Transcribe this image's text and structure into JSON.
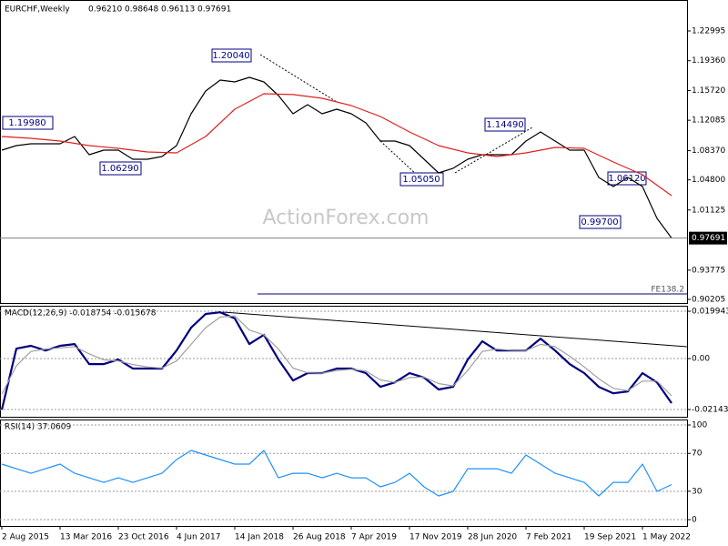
{
  "chart_data": [
    {
      "type": "line",
      "title": "EURCHF,Weekly",
      "ohlc_labels": [
        "0.96210",
        "0.98648",
        "0.96113",
        "0.97691"
      ],
      "last_label": "0.97691",
      "watermark": "ActionForex.com",
      "fe_label": "FE138.2",
      "annotations": [
        "1.19980",
        "1.06290",
        "1.20040",
        "1.05050",
        "1.14490",
        "1.06120",
        "0.99700"
      ],
      "x": [
        0,
        8,
        16,
        24,
        32,
        40,
        48,
        56,
        64,
        72,
        80,
        88,
        96,
        104,
        112,
        120,
        128,
        136,
        144,
        152,
        160,
        168,
        176,
        184,
        192,
        200,
        208,
        216,
        224,
        232,
        240,
        248,
        256,
        264,
        272,
        280,
        288,
        296,
        304,
        312,
        320,
        328,
        336,
        344,
        352,
        360,
        368
      ],
      "xlim": [
        -1,
        376.5
      ],
      "ylim": [
        0.8976,
        1.26774
      ],
      "grid": false,
      "yticks": [
        1.22995,
        {
          "value": 1.1936,
          "label": "1.19360"
        },
        {
          "value": 1.1572,
          "label": "1.15720"
        },
        1.12085,
        {
          "value": 1.0837,
          "label": "1.08370"
        },
        {
          "value": 1.048,
          "label": "1.04800"
        },
        1.01125,
        0.93775,
        0.90205
      ],
      "series": [
        {
          "color": "#000000",
          "values": [
            1.0843,
            1.0899,
            1.0921,
            1.0921,
            1.0921,
            1.101,
            1.0788,
            1.0843,
            1.0843,
            1.0732,
            1.0732,
            1.0766,
            1.0899,
            1.1288,
            1.1566,
            1.1699,
            1.1677,
            1.1733,
            1.1677,
            1.151,
            1.1288,
            1.1399,
            1.1288,
            1.1344,
            1.1288,
            1.1177,
            1.0955,
            1.0955,
            1.0899,
            1.0732,
            1.0566,
            1.0622,
            1.0732,
            1.0788,
            1.0788,
            1.0788,
            1.0955,
            1.1066,
            1.0955,
            1.0843,
            1.0843,
            1.051,
            1.0399,
            1.051,
            1.0399,
            1.001,
            0.97691
          ]
        },
        {
          "color": "#e0201c",
          "x": [
            0,
            16,
            32,
            48,
            64,
            80,
            96,
            112,
            128,
            144,
            160,
            176,
            192,
            208,
            224,
            240,
            256,
            272,
            288,
            304,
            320,
            336,
            352,
            368
          ],
          "values": [
            1.101,
            1.0988,
            1.0955,
            1.0899,
            1.0866,
            1.0821,
            1.081,
            1.101,
            1.1344,
            1.1533,
            1.1522,
            1.1477,
            1.1388,
            1.1255,
            1.1066,
            1.0899,
            1.081,
            1.0766,
            1.081,
            1.0877,
            1.0866,
            1.0699,
            1.0543,
            1.0288
          ]
        }
      ]
    },
    {
      "type": "line",
      "title": "MACD(12,26,9) -0.018754 -0.015678",
      "x": [
        0,
        8,
        16,
        24,
        32,
        40,
        48,
        56,
        64,
        72,
        80,
        88,
        96,
        104,
        112,
        120,
        128,
        136,
        144,
        152,
        160,
        168,
        176,
        184,
        192,
        200,
        208,
        216,
        224,
        232,
        240,
        248,
        256,
        264,
        272,
        280,
        288,
        296,
        304,
        312,
        320,
        328,
        336,
        344,
        352,
        360,
        368
      ],
      "xlim": [
        -1,
        376.5
      ],
      "ylim": [
        -0.0245,
        0.02224
      ],
      "grid": true,
      "yticks": [
        0.019943,
        {
          "value": 0,
          "label": "0.00"
        },
        -0.021434
      ],
      "series": [
        {
          "color": "#000080",
          "values": [
            -0.0215,
            0.0042,
            0.0054,
            0.0034,
            0.0054,
            0.0061,
            -0.0023,
            -0.0023,
            -0.0004,
            -0.0042,
            -0.0042,
            -0.0042,
            0.0034,
            0.013,
            0.0188,
            0.0195,
            0.0169,
            0.0061,
            0.01,
            -0.0004,
            -0.0092,
            -0.0061,
            -0.0061,
            -0.0042,
            -0.0042,
            -0.0061,
            -0.0119,
            -0.01,
            -0.0061,
            -0.008,
            -0.013,
            -0.0119,
            -0.0004,
            0.0073,
            0.0034,
            0.0034,
            0.0034,
            0.0084,
            0.0034,
            -0.0023,
            -0.0061,
            -0.0119,
            -0.0146,
            -0.0138,
            -0.0061,
            -0.01,
            -0.018754
          ]
        },
        {
          "color": "#a0a0a0",
          "values": [
            -0.015,
            -0.003,
            0.003,
            0.004,
            0.0045,
            0.005,
            0.002,
            -0.0005,
            -0.001,
            -0.0025,
            -0.0035,
            -0.004,
            -0.001,
            0.006,
            0.013,
            0.0175,
            0.018,
            0.012,
            0.01,
            0.004,
            -0.004,
            -0.006,
            -0.0062,
            -0.005,
            -0.0045,
            -0.0052,
            -0.009,
            -0.01,
            -0.008,
            -0.0078,
            -0.0105,
            -0.0115,
            -0.005,
            0.003,
            0.004,
            0.0035,
            0.0034,
            0.006,
            0.005,
            0.001,
            -0.0035,
            -0.0085,
            -0.0125,
            -0.0135,
            -0.0095,
            -0.0095,
            -0.015678
          ]
        }
      ]
    },
    {
      "type": "line",
      "title": "RSI(14) 37.0609",
      "x": [
        0,
        8,
        16,
        24,
        32,
        40,
        48,
        56,
        64,
        72,
        80,
        88,
        96,
        104,
        112,
        120,
        128,
        136,
        144,
        152,
        160,
        168,
        176,
        184,
        192,
        200,
        208,
        216,
        224,
        232,
        240,
        248,
        256,
        264,
        272,
        280,
        288,
        296,
        304,
        312,
        320,
        328,
        336,
        344,
        352,
        360,
        368
      ],
      "xlim": [
        -1,
        376.5
      ],
      "ylim": [
        -6.7,
        105.8
      ],
      "grid": true,
      "yticks": [
        100,
        70,
        30,
        0
      ],
      "xticks": [
        {
          "value": 0,
          "label": "2 Aug 2015"
        },
        {
          "value": 32,
          "label": "13 Mar 2016"
        },
        {
          "value": 64,
          "label": "23 Oct 2016"
        },
        {
          "value": 96,
          "label": "4 Jun 2017"
        },
        {
          "value": 128,
          "label": "14 Jan 2018"
        },
        {
          "value": 160,
          "label": "26 Aug 2018"
        },
        {
          "value": 192,
          "label": "7 Apr 2019"
        },
        {
          "value": 224,
          "label": "17 Nov 2019"
        },
        {
          "value": 256,
          "label": "28 Jun 2020"
        },
        {
          "value": 288,
          "label": "7 Feb 2021"
        },
        {
          "value": 320,
          "label": "19 Sep 2021"
        },
        {
          "value": 352,
          "label": "1 May 2022"
        }
      ],
      "series": [
        {
          "color": "#1e90ff",
          "values": [
            58.7,
            53.8,
            49,
            53.8,
            58.7,
            49,
            44.2,
            39.4,
            44.2,
            39.4,
            44.2,
            49,
            63.5,
            73.1,
            68.3,
            63.5,
            58.7,
            58.7,
            73.1,
            44.2,
            49,
            49,
            44.2,
            49,
            44.2,
            44.2,
            34.6,
            39.4,
            49,
            34.6,
            25,
            29.8,
            53.8,
            53.8,
            53.8,
            49,
            68.3,
            58.7,
            49,
            44.2,
            39.4,
            25,
            39.4,
            39.4,
            58.7,
            29.8,
            37.0609
          ]
        }
      ]
    }
  ]
}
